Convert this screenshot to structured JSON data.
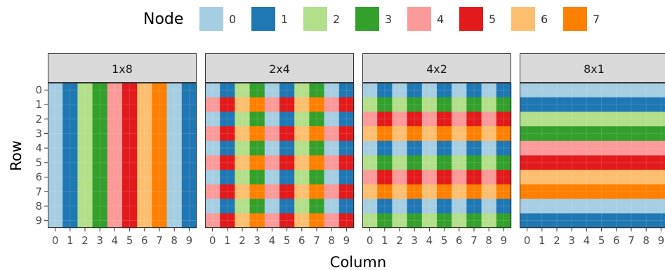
{
  "chart_data": {
    "type": "heatmap",
    "title": "",
    "xlabel": "Column",
    "ylabel": "Row",
    "x": [
      "0",
      "1",
      "2",
      "3",
      "4",
      "5",
      "6",
      "7",
      "8",
      "9"
    ],
    "y": [
      "0",
      "1",
      "2",
      "3",
      "4",
      "5",
      "6",
      "7",
      "8",
      "9"
    ],
    "legend": {
      "title": "Node",
      "placement": "top",
      "entries": [
        {
          "label": "0",
          "color": "#a6cee3"
        },
        {
          "label": "1",
          "color": "#1f78b4"
        },
        {
          "label": "2",
          "color": "#b2df8a"
        },
        {
          "label": "3",
          "color": "#33a02c"
        },
        {
          "label": "4",
          "color": "#fb9a99"
        },
        {
          "label": "5",
          "color": "#e31a1c"
        },
        {
          "label": "6",
          "color": "#fdbf6f"
        },
        {
          "label": "7",
          "color": "#ff7f00"
        }
      ]
    },
    "grid": true,
    "panels": [
      {
        "label": "1x8",
        "values": [
          [
            0,
            1,
            2,
            3,
            4,
            5,
            6,
            7,
            0,
            1
          ],
          [
            0,
            1,
            2,
            3,
            4,
            5,
            6,
            7,
            0,
            1
          ],
          [
            0,
            1,
            2,
            3,
            4,
            5,
            6,
            7,
            0,
            1
          ],
          [
            0,
            1,
            2,
            3,
            4,
            5,
            6,
            7,
            0,
            1
          ],
          [
            0,
            1,
            2,
            3,
            4,
            5,
            6,
            7,
            0,
            1
          ],
          [
            0,
            1,
            2,
            3,
            4,
            5,
            6,
            7,
            0,
            1
          ],
          [
            0,
            1,
            2,
            3,
            4,
            5,
            6,
            7,
            0,
            1
          ],
          [
            0,
            1,
            2,
            3,
            4,
            5,
            6,
            7,
            0,
            1
          ],
          [
            0,
            1,
            2,
            3,
            4,
            5,
            6,
            7,
            0,
            1
          ],
          [
            0,
            1,
            2,
            3,
            4,
            5,
            6,
            7,
            0,
            1
          ]
        ]
      },
      {
        "label": "2x4",
        "values": [
          [
            0,
            1,
            2,
            3,
            0,
            1,
            2,
            3,
            0,
            1
          ],
          [
            4,
            5,
            6,
            7,
            4,
            5,
            6,
            7,
            4,
            5
          ],
          [
            0,
            1,
            2,
            3,
            0,
            1,
            2,
            3,
            0,
            1
          ],
          [
            4,
            5,
            6,
            7,
            4,
            5,
            6,
            7,
            4,
            5
          ],
          [
            0,
            1,
            2,
            3,
            0,
            1,
            2,
            3,
            0,
            1
          ],
          [
            4,
            5,
            6,
            7,
            4,
            5,
            6,
            7,
            4,
            5
          ],
          [
            0,
            1,
            2,
            3,
            0,
            1,
            2,
            3,
            0,
            1
          ],
          [
            4,
            5,
            6,
            7,
            4,
            5,
            6,
            7,
            4,
            5
          ],
          [
            0,
            1,
            2,
            3,
            0,
            1,
            2,
            3,
            0,
            1
          ],
          [
            4,
            5,
            6,
            7,
            4,
            5,
            6,
            7,
            4,
            5
          ]
        ]
      },
      {
        "label": "4x2",
        "values": [
          [
            0,
            1,
            0,
            1,
            0,
            1,
            0,
            1,
            0,
            1
          ],
          [
            2,
            3,
            2,
            3,
            2,
            3,
            2,
            3,
            2,
            3
          ],
          [
            4,
            5,
            4,
            5,
            4,
            5,
            4,
            5,
            4,
            5
          ],
          [
            6,
            7,
            6,
            7,
            6,
            7,
            6,
            7,
            6,
            7
          ],
          [
            0,
            1,
            0,
            1,
            0,
            1,
            0,
            1,
            0,
            1
          ],
          [
            2,
            3,
            2,
            3,
            2,
            3,
            2,
            3,
            2,
            3
          ],
          [
            4,
            5,
            4,
            5,
            4,
            5,
            4,
            5,
            4,
            5
          ],
          [
            6,
            7,
            6,
            7,
            6,
            7,
            6,
            7,
            6,
            7
          ],
          [
            0,
            1,
            0,
            1,
            0,
            1,
            0,
            1,
            0,
            1
          ],
          [
            2,
            3,
            2,
            3,
            2,
            3,
            2,
            3,
            2,
            3
          ]
        ]
      },
      {
        "label": "8x1",
        "values": [
          [
            0,
            0,
            0,
            0,
            0,
            0,
            0,
            0,
            0,
            0
          ],
          [
            1,
            1,
            1,
            1,
            1,
            1,
            1,
            1,
            1,
            1
          ],
          [
            2,
            2,
            2,
            2,
            2,
            2,
            2,
            2,
            2,
            2
          ],
          [
            3,
            3,
            3,
            3,
            3,
            3,
            3,
            3,
            3,
            3
          ],
          [
            4,
            4,
            4,
            4,
            4,
            4,
            4,
            4,
            4,
            4
          ],
          [
            5,
            5,
            5,
            5,
            5,
            5,
            5,
            5,
            5,
            5
          ],
          [
            6,
            6,
            6,
            6,
            6,
            6,
            6,
            6,
            6,
            6
          ],
          [
            7,
            7,
            7,
            7,
            7,
            7,
            7,
            7,
            7,
            7
          ],
          [
            0,
            0,
            0,
            0,
            0,
            0,
            0,
            0,
            0,
            0
          ],
          [
            1,
            1,
            1,
            1,
            1,
            1,
            1,
            1,
            1,
            1
          ]
        ]
      }
    ]
  }
}
